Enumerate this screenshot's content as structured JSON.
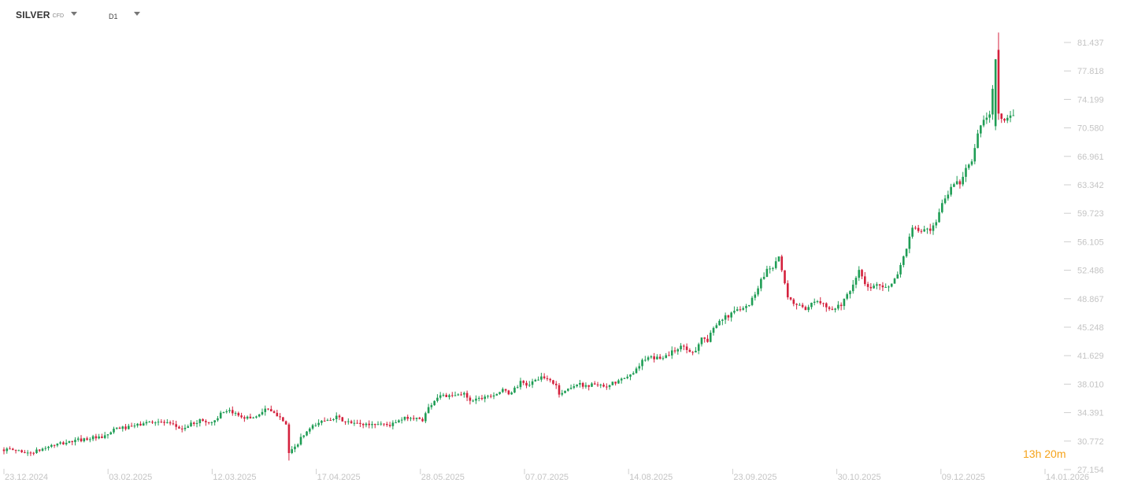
{
  "header": {
    "symbol": "SILVER",
    "symbol_type": "CFD",
    "timeframe": "D1"
  },
  "countdown": {
    "hours": "13",
    "h_unit": "h",
    "minutes": "20",
    "m_unit": "m"
  },
  "colors": {
    "up": "#1f9d55",
    "down": "#d4213d",
    "axis_text": "#c4c4c4",
    "countdown": "#f5a31b"
  },
  "chart_data": {
    "type": "candlestick",
    "yticks": [
      "81.437",
      "77.818",
      "74.199",
      "70.580",
      "66.961",
      "63.342",
      "59.723",
      "56.105",
      "52.486",
      "48.867",
      "45.248",
      "41.629",
      "38.010",
      "34.391",
      "30.772",
      "27.154"
    ],
    "ylim": [
      27.154,
      83.0
    ],
    "xticks": [
      "23.12.2024",
      "03.02.2025",
      "12.03.2025",
      "17.04.2025",
      "28.05.2025",
      "07.07.2025",
      "14.08.2025",
      "23.09.2025",
      "30.10.2025",
      "09.12.2025",
      "14.01.2026"
    ],
    "trend_close": [
      [
        0,
        29.7
      ],
      [
        5,
        29.6
      ],
      [
        8,
        29.2
      ],
      [
        12,
        29.6
      ],
      [
        15,
        30.1
      ],
      [
        20,
        30.5
      ],
      [
        25,
        30.9
      ],
      [
        30,
        31.2
      ],
      [
        33,
        31.1
      ],
      [
        36,
        31.9
      ],
      [
        38,
        32.4
      ],
      [
        42,
        32.5
      ],
      [
        46,
        32.9
      ],
      [
        50,
        33.3
      ],
      [
        54,
        33.1
      ],
      [
        58,
        32.6
      ],
      [
        60,
        32.3
      ],
      [
        63,
        32.9
      ],
      [
        66,
        33.4
      ],
      [
        70,
        33.1
      ],
      [
        73,
        34.2
      ],
      [
        76,
        34.5
      ],
      [
        79,
        34.1
      ],
      [
        82,
        33.7
      ],
      [
        85,
        33.9
      ],
      [
        88,
        34.9
      ],
      [
        91,
        34.2
      ],
      [
        93,
        34.0
      ],
      [
        95,
        32.9
      ],
      [
        96,
        29.2
      ],
      [
        98,
        29.9
      ],
      [
        100,
        31.1
      ],
      [
        103,
        32.3
      ],
      [
        106,
        33.1
      ],
      [
        109,
        33.6
      ],
      [
        112,
        33.8
      ],
      [
        115,
        33.2
      ],
      [
        118,
        33.0
      ],
      [
        121,
        32.9
      ],
      [
        124,
        32.9
      ],
      [
        127,
        33.0
      ],
      [
        130,
        32.8
      ],
      [
        133,
        33.3
      ],
      [
        136,
        33.8
      ],
      [
        139,
        33.6
      ],
      [
        141,
        33.5
      ],
      [
        143,
        35.0
      ],
      [
        145,
        36.0
      ],
      [
        147,
        36.7
      ],
      [
        150,
        36.4
      ],
      [
        153,
        36.6
      ],
      [
        155,
        36.8
      ],
      [
        157,
        36.0
      ],
      [
        160,
        36.2
      ],
      [
        162,
        36.5
      ],
      [
        165,
        36.7
      ],
      [
        168,
        37.2
      ],
      [
        170,
        36.8
      ],
      [
        172,
        37.4
      ],
      [
        174,
        38.2
      ],
      [
        176,
        37.9
      ],
      [
        178,
        38.2
      ],
      [
        180,
        38.8
      ],
      [
        182,
        38.7
      ],
      [
        184,
        38.5
      ],
      [
        186,
        37.8
      ],
      [
        187,
        36.8
      ],
      [
        189,
        37.1
      ],
      [
        191,
        37.7
      ],
      [
        193,
        38.0
      ],
      [
        195,
        37.9
      ],
      [
        197,
        37.8
      ],
      [
        199,
        38.1
      ],
      [
        201,
        37.7
      ],
      [
        203,
        37.5
      ],
      [
        205,
        38.1
      ],
      [
        207,
        38.4
      ],
      [
        209,
        38.7
      ],
      [
        211,
        39.1
      ],
      [
        213,
        40.1
      ],
      [
        215,
        40.9
      ],
      [
        217,
        41.3
      ],
      [
        219,
        41.3
      ],
      [
        221,
        41.4
      ],
      [
        223,
        41.6
      ],
      [
        225,
        42.1
      ],
      [
        227,
        42.6
      ],
      [
        229,
        42.8
      ],
      [
        231,
        42.1
      ],
      [
        233,
        42.4
      ],
      [
        235,
        43.9
      ],
      [
        237,
        43.5
      ],
      [
        239,
        45.2
      ],
      [
        241,
        46.3
      ],
      [
        243,
        46.5
      ],
      [
        245,
        46.9
      ],
      [
        247,
        47.5
      ],
      [
        249,
        47.9
      ],
      [
        251,
        48.1
      ],
      [
        253,
        49.6
      ],
      [
        255,
        51.2
      ],
      [
        257,
        52.6
      ],
      [
        259,
        53.0
      ],
      [
        261,
        54.3
      ],
      [
        262,
        52.3
      ],
      [
        264,
        48.9
      ],
      [
        266,
        48.3
      ],
      [
        268,
        48.1
      ],
      [
        270,
        47.2
      ],
      [
        272,
        48.1
      ],
      [
        274,
        48.6
      ],
      [
        276,
        48.5
      ],
      [
        278,
        47.5
      ],
      [
        280,
        47.7
      ],
      [
        282,
        48.2
      ],
      [
        284,
        49.2
      ],
      [
        286,
        50.4
      ],
      [
        288,
        52.6
      ],
      [
        290,
        50.6
      ],
      [
        292,
        50.1
      ],
      [
        294,
        50.9
      ],
      [
        296,
        50.5
      ],
      [
        298,
        50.2
      ],
      [
        300,
        51.2
      ],
      [
        302,
        53.1
      ],
      [
        304,
        55.4
      ],
      [
        306,
        57.8
      ],
      [
        308,
        57.5
      ],
      [
        310,
        57.6
      ],
      [
        312,
        57.4
      ],
      [
        314,
        58.4
      ],
      [
        316,
        61.0
      ],
      [
        318,
        62.2
      ],
      [
        320,
        63.7
      ],
      [
        322,
        63.5
      ],
      [
        324,
        65.8
      ],
      [
        326,
        66.3
      ],
      [
        328,
        69.7
      ],
      [
        330,
        71.6
      ],
      [
        332,
        72.1
      ],
      [
        334,
        79.0
      ],
      [
        336,
        72.0
      ],
      [
        338,
        71.6
      ],
      [
        340,
        72.5
      ]
    ]
  }
}
